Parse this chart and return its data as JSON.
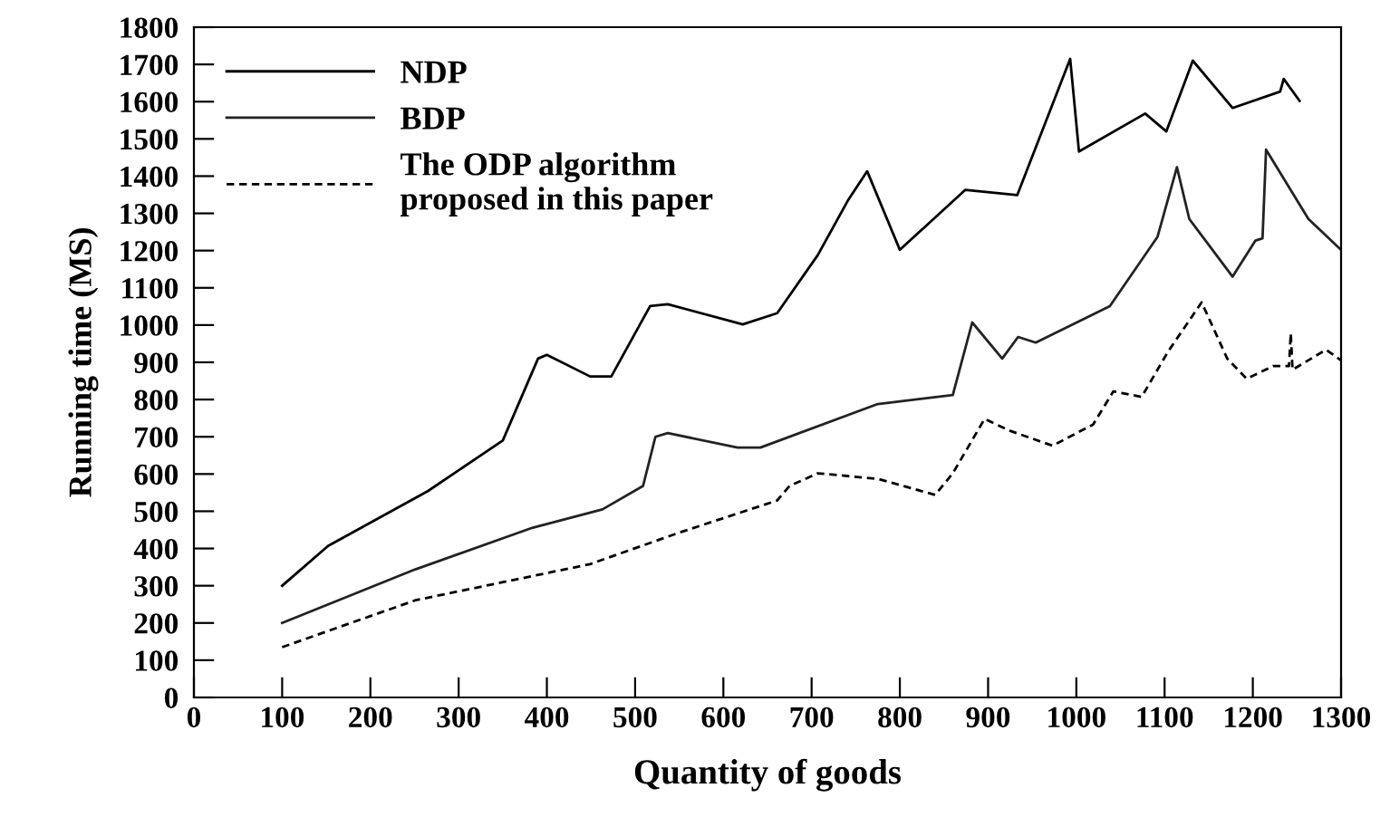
{
  "chart_data": {
    "type": "line",
    "xlabel": "Quantity of goods",
    "ylabel": "Running time (MS)",
    "xlim": [
      0,
      1300
    ],
    "xticks": [
      0,
      100,
      200,
      300,
      400,
      500,
      600,
      700,
      800,
      900,
      1000,
      1100,
      1200,
      1300
    ],
    "ylim": [
      0,
      1800
    ],
    "yticks": [
      0,
      100,
      200,
      300,
      400,
      500,
      600,
      700,
      800,
      900,
      1000,
      1100,
      1200,
      1300,
      1400,
      1500,
      1600,
      1700,
      1800
    ],
    "grid": false,
    "legend": "top left",
    "marker": "none",
    "series": [
      {
        "name": "NDP",
        "color": "#000000",
        "line_style": "solid",
        "x": [
          100,
          152,
          265,
          350,
          390,
          400,
          449,
          473,
          517,
          537,
          622,
          661,
          707,
          741,
          763,
          800,
          874,
          933,
          993,
          1003,
          1078,
          1102,
          1132,
          1177,
          1231,
          1235,
          1253
        ],
        "values": [
          300,
          407,
          554,
          690,
          910,
          920,
          862,
          862,
          1051,
          1056,
          1002,
          1032,
          1188,
          1334,
          1413,
          1202,
          1363,
          1349,
          1715,
          1466,
          1568,
          1520,
          1710,
          1583,
          1627,
          1661,
          1602
        ]
      },
      {
        "name": "BDP",
        "color": "#222222",
        "line_style": "solid",
        "x": [
          100,
          251,
          384,
          463,
          509,
          523,
          537,
          616,
          642,
          775,
          860,
          882,
          916,
          934,
          954,
          1038,
          1092,
          1114,
          1128,
          1177,
          1203,
          1211,
          1215,
          1263,
          1300
        ],
        "values": [
          200,
          344,
          456,
          505,
          568,
          700,
          710,
          671,
          671,
          788,
          812,
          1007,
          910,
          968,
          953,
          1051,
          1237,
          1424,
          1285,
          1130,
          1227,
          1233,
          1471,
          1285,
          1202
        ]
      },
      {
        "name": "The ODP algorithm\nproposed in this paper",
        "color": "#000000",
        "line_style": "dashed",
        "x": [
          100,
          251,
          449,
          548,
          661,
          675,
          707,
          775,
          840,
          860,
          896,
          925,
          973,
          1019,
          1042,
          1074,
          1104,
          1142,
          1171,
          1193,
          1223,
          1241,
          1243,
          1245,
          1283,
          1300
        ],
        "values": [
          135,
          261,
          358,
          441,
          529,
          568,
          602,
          587,
          544,
          602,
          748,
          716,
          676,
          733,
          822,
          807,
          929,
          1061,
          910,
          856,
          890,
          890,
          978,
          880,
          934,
          905
        ]
      }
    ]
  }
}
